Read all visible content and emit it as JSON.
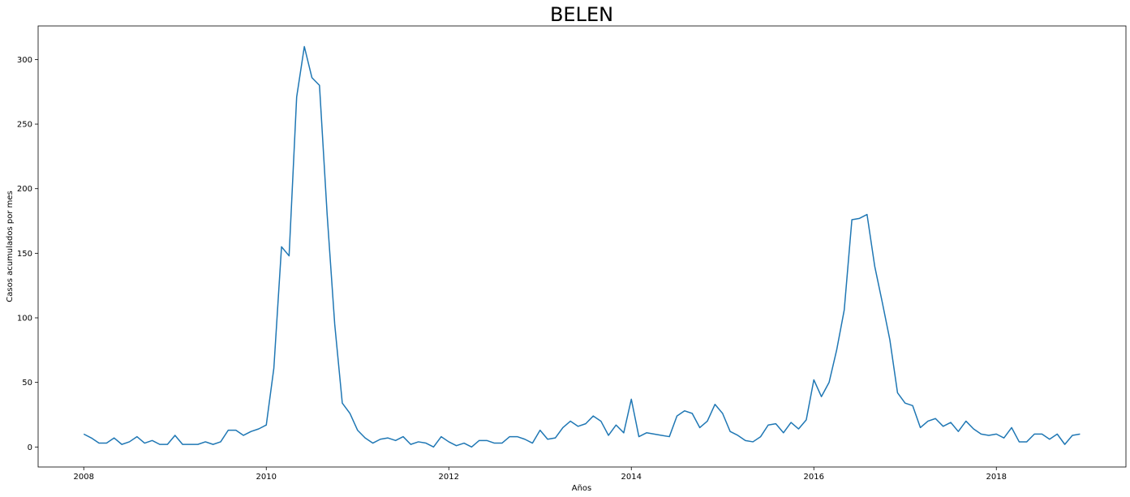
{
  "chart_data": {
    "type": "line",
    "title": "BELEN",
    "xlabel": "Años",
    "ylabel": "Casos acumulados por mes",
    "xlim": [
      2007.5,
      2019.42
    ],
    "ylim": [
      -15.5,
      326
    ],
    "x_ticks": [
      2008,
      2010,
      2012,
      2014,
      2016,
      2018
    ],
    "x_tick_labels": [
      "2008",
      "2010",
      "2012",
      "2014",
      "2016",
      "2018"
    ],
    "y_ticks": [
      0,
      50,
      100,
      150,
      200,
      250,
      300
    ],
    "y_tick_labels": [
      "0",
      "50",
      "100",
      "150",
      "200",
      "250",
      "300"
    ],
    "grid": false,
    "colors": {
      "line": "#1f77b4",
      "axes": "#000000"
    },
    "series": [
      {
        "x": [
          2008.0,
          2008.083,
          2008.167,
          2008.25,
          2008.333,
          2008.417,
          2008.5,
          2008.583,
          2008.667,
          2008.75,
          2008.833,
          2008.917,
          2009.0,
          2009.083,
          2009.167,
          2009.25,
          2009.333,
          2009.417,
          2009.5,
          2009.583,
          2009.667,
          2009.75,
          2009.833,
          2009.917,
          2010.0,
          2010.083,
          2010.167,
          2010.25,
          2010.333,
          2010.417,
          2010.5,
          2010.583,
          2010.667,
          2010.75,
          2010.833,
          2010.917,
          2011.0,
          2011.083,
          2011.167,
          2011.25,
          2011.333,
          2011.417,
          2011.5,
          2011.583,
          2011.667,
          2011.75,
          2011.833,
          2011.917,
          2012.0,
          2012.083,
          2012.167,
          2012.25,
          2012.333,
          2012.417,
          2012.5,
          2012.583,
          2012.667,
          2012.75,
          2012.833,
          2012.917,
          2013.0,
          2013.083,
          2013.167,
          2013.25,
          2013.333,
          2013.417,
          2013.5,
          2013.583,
          2013.667,
          2013.75,
          2013.833,
          2013.917,
          2014.0,
          2014.083,
          2014.167,
          2014.25,
          2014.333,
          2014.417,
          2014.5,
          2014.583,
          2014.667,
          2014.75,
          2014.833,
          2014.917,
          2015.0,
          2015.083,
          2015.167,
          2015.25,
          2015.333,
          2015.417,
          2015.5,
          2015.583,
          2015.667,
          2015.75,
          2015.833,
          2015.917,
          2016.0,
          2016.083,
          2016.167,
          2016.25,
          2016.333,
          2016.417,
          2016.5,
          2016.583,
          2016.667,
          2016.75,
          2016.833,
          2016.917,
          2017.0,
          2017.083,
          2017.167,
          2017.25,
          2017.333,
          2017.417,
          2017.5,
          2017.583,
          2017.667,
          2017.75,
          2017.833,
          2017.917,
          2018.0,
          2018.083,
          2018.167,
          2018.25,
          2018.333,
          2018.417,
          2018.5,
          2018.583,
          2018.667,
          2018.75,
          2018.833,
          2018.917
        ],
        "y": [
          10,
          7,
          3,
          3,
          7,
          2,
          4,
          8,
          3,
          5,
          2,
          2,
          9,
          2,
          2,
          2,
          4,
          2,
          4,
          13,
          13,
          9,
          12,
          14,
          17,
          61,
          155,
          148,
          271,
          310,
          286,
          280,
          180,
          95,
          34,
          26,
          13,
          7,
          3,
          6,
          7,
          5,
          8,
          2,
          4,
          3,
          0,
          8,
          4,
          1,
          3,
          0,
          5,
          5,
          3,
          3,
          8,
          8,
          6,
          3,
          13,
          6,
          7,
          15,
          20,
          16,
          18,
          24,
          20,
          9,
          17,
          11,
          37,
          8,
          11,
          10,
          9,
          8,
          24,
          28,
          26,
          15,
          20,
          33,
          26,
          12,
          9,
          5,
          4,
          8,
          17,
          18,
          11,
          19,
          14,
          21,
          52,
          39,
          50,
          75,
          106,
          176,
          177,
          180,
          140,
          112,
          83,
          42,
          34,
          32,
          15,
          20,
          22,
          16,
          19,
          12,
          20,
          14,
          10,
          9,
          10,
          7,
          15,
          4,
          4,
          10,
          10,
          6,
          10,
          2,
          9,
          10
        ]
      }
    ]
  }
}
